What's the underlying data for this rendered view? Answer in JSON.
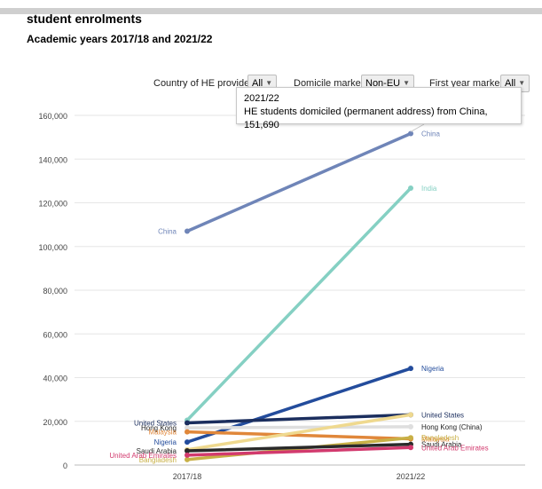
{
  "title": "student enrolments",
  "subtitle": "Academic years 2017/18 and 2021/22",
  "filters": [
    {
      "label": "Country of HE provider",
      "value": "All"
    },
    {
      "label": "Domicile marker",
      "value": "Non-EU"
    },
    {
      "label": "First year marker",
      "value": "All"
    }
  ],
  "tooltip": {
    "year": "2021/22",
    "text": "HE students domiciled (permanent address) from China, 151,690"
  },
  "chart_data": {
    "type": "line",
    "x": [
      "2017/18",
      "2021/22"
    ],
    "ylim": [
      0,
      160000
    ],
    "yticks": [
      0,
      20000,
      40000,
      60000,
      80000,
      100000,
      120000,
      140000,
      160000
    ],
    "ytick_labels": [
      "0",
      "20,000",
      "40,000",
      "60,000",
      "80,000",
      "100,000",
      "120,000",
      "140,000",
      "160,000"
    ],
    "grid": true,
    "series": [
      {
        "name": "China",
        "values": [
          107000,
          151690
        ],
        "color": "#6f85b8",
        "left_label": "China",
        "right_label": "China"
      },
      {
        "name": "India",
        "values": [
          20500,
          126700
        ],
        "color": "#85d0c3",
        "left_label": "",
        "right_label": "India"
      },
      {
        "name": "Nigeria",
        "values": [
          10500,
          44200
        ],
        "color": "#234c9c",
        "left_label": "Nigeria",
        "right_label": "Nigeria"
      },
      {
        "name": "United States",
        "values": [
          19300,
          23000
        ],
        "color": "#1b2e5e",
        "left_label": "United States",
        "right_label": "United States"
      },
      {
        "name": "Hong Kong (China)",
        "values": [
          17000,
          17500
        ],
        "color": "#dedede",
        "left_label": "Hong Kong",
        "right_label": "Hong Kong (China)"
      },
      {
        "name": "Malaysia",
        "values": [
          15200,
          12000
        ],
        "color": "#e0873a",
        "left_label": "Malaysia",
        "right_label": "Malaysia"
      },
      {
        "name": "Bangladesh",
        "values": [
          2500,
          12500
        ],
        "color": "#c8b046",
        "left_label": "Bangladesh",
        "right_label": "Bangladesh"
      },
      {
        "name": "Pakistan",
        "values": [
          7000,
          23000
        ],
        "color": "#efd98f",
        "left_label": "",
        "right_label": ""
      },
      {
        "name": "Saudi Arabia",
        "values": [
          6500,
          9500
        ],
        "color": "#2a2a2a",
        "left_label": "Saudi Arabia",
        "right_label": "Saudi Arabia"
      },
      {
        "name": "United Arab Emirates",
        "values": [
          4500,
          8000
        ],
        "color": "#d23a6e",
        "left_label": "United Arab Emirates",
        "right_label": "United Arab Emirates"
      }
    ]
  }
}
